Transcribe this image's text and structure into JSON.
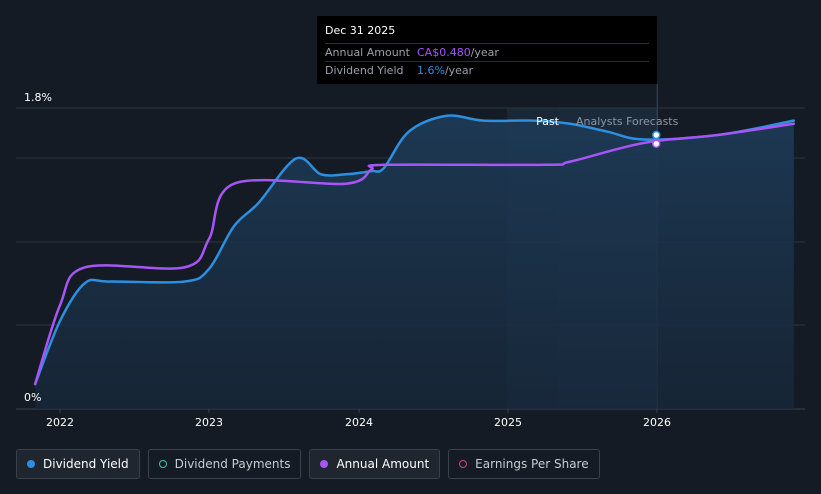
{
  "tooltip": {
    "date": "Dec 31 2025",
    "annual_amount_label": "Annual Amount",
    "annual_amount_value": "CA$0.480",
    "annual_amount_unit": "/year",
    "dividend_yield_label": "Dividend Yield",
    "dividend_yield_value": "1.6%",
    "dividend_yield_unit": "/year"
  },
  "regions": {
    "past": "Past",
    "forecast": "Analysts Forecasts"
  },
  "legend": [
    {
      "label": "Dividend Yield",
      "color": "#2d8fe0",
      "style": "filled",
      "active": true
    },
    {
      "label": "Dividend Payments",
      "color": "#3ec9b0",
      "style": "hollow",
      "active": false
    },
    {
      "label": "Annual Amount",
      "color": "#a855f7",
      "style": "filled",
      "active": true
    },
    {
      "label": "Earnings Per Share",
      "color": "#d6457a",
      "style": "hollow",
      "active": false
    }
  ],
  "colors": {
    "yield": "#2d8fe0",
    "amount": "#a855f7",
    "background": "#151b24"
  },
  "chart_data": {
    "type": "line",
    "x_ticks": [
      "2022",
      "2023",
      "2024",
      "2025",
      "2026"
    ],
    "y_ticks": [
      "0%",
      "1.8%"
    ],
    "y_range": [
      0,
      1.8
    ],
    "x_range": [
      "2021-11",
      "2026-12"
    ],
    "past_until": "2025-05",
    "highlight_date": "2025-12-31",
    "series": [
      {
        "name": "Dividend Yield",
        "color": "#2d8fe0",
        "points": [
          [
            "2021-11",
            0.05
          ],
          [
            "2022-01",
            0.45
          ],
          [
            "2022-03",
            0.69
          ],
          [
            "2022-05",
            0.7
          ],
          [
            "2022-11",
            0.7
          ],
          [
            "2023-01",
            0.78
          ],
          [
            "2023-03",
            1.05
          ],
          [
            "2023-05",
            1.2
          ],
          [
            "2023-08",
            1.48
          ],
          [
            "2023-10",
            1.38
          ],
          [
            "2023-12",
            1.38
          ],
          [
            "2024-02",
            1.4
          ],
          [
            "2024-03",
            1.42
          ],
          [
            "2024-05",
            1.65
          ],
          [
            "2024-08",
            1.75
          ],
          [
            "2024-11",
            1.72
          ],
          [
            "2025-03",
            1.72
          ],
          [
            "2025-06",
            1.7
          ],
          [
            "2025-09",
            1.65
          ],
          [
            "2025-12",
            1.6
          ],
          [
            "2026-06",
            1.63
          ],
          [
            "2026-12",
            1.72
          ]
        ]
      },
      {
        "name": "Annual Amount",
        "color": "#a855f7",
        "points": [
          [
            "2021-11",
            0.05
          ],
          [
            "2022-01",
            0.55
          ],
          [
            "2022-03",
            0.79
          ],
          [
            "2022-11",
            0.79
          ],
          [
            "2023-01",
            0.97
          ],
          [
            "2023-03",
            1.32
          ],
          [
            "2023-12",
            1.32
          ],
          [
            "2024-02",
            1.41
          ],
          [
            "2024-03",
            1.44
          ],
          [
            "2025-04",
            1.44
          ],
          [
            "2025-06",
            1.46
          ],
          [
            "2025-12",
            1.58
          ],
          [
            "2026-06",
            1.63
          ],
          [
            "2026-12",
            1.7
          ]
        ]
      }
    ]
  }
}
